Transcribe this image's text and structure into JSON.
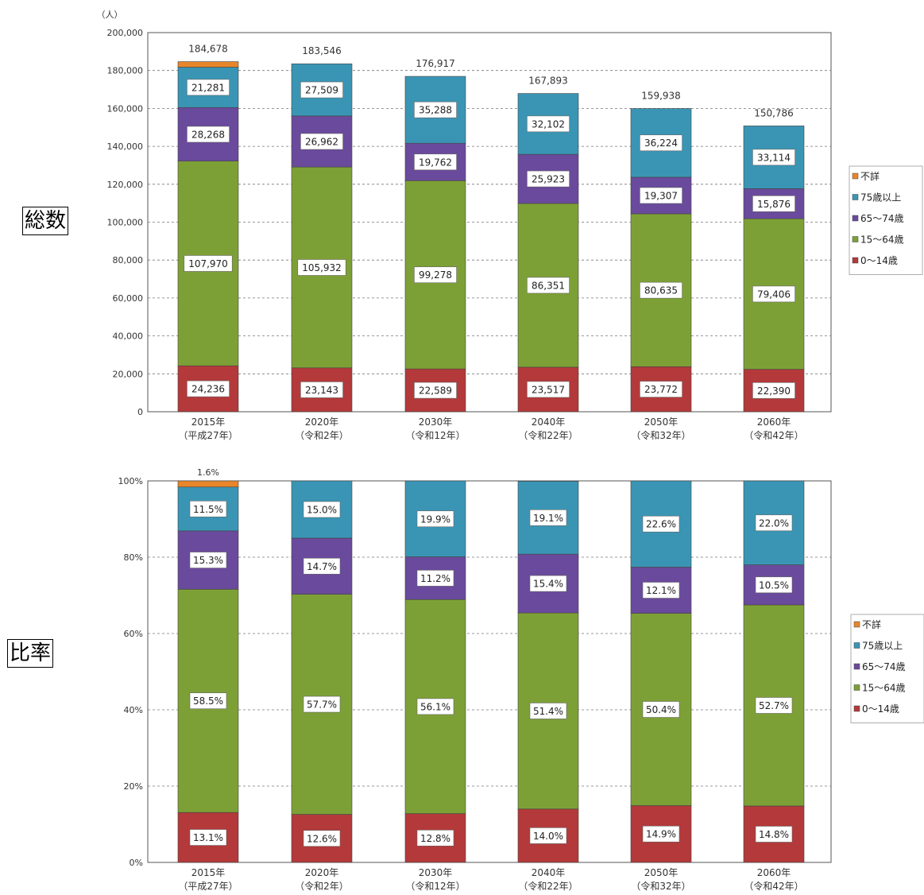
{
  "colors": {
    "unknown": "#E8862A",
    "age75plus": "#3A95B4",
    "age65_74": "#6A4A9C",
    "age15_64": "#7DA036",
    "age0_14": "#B4393A"
  },
  "legend": [
    "不詳",
    "75歳以上",
    "65～74歳",
    "15～64歳",
    "0～14歳"
  ],
  "panel_labels": {
    "top": "総数",
    "bottom": "比率"
  },
  "chart_data": [
    {
      "type": "bar",
      "stacked": true,
      "unit_label": "（人）",
      "categories": [
        "2015年",
        "2020年",
        "2030年",
        "2040年",
        "2050年",
        "2060年"
      ],
      "category_sub": [
        "（平成27年）",
        "（令和2年）",
        "（令和12年）",
        "（令和22年）",
        "（令和32年）",
        "（令和42年）"
      ],
      "ylim": [
        0,
        200000
      ],
      "yticks": [
        "0",
        "20,000",
        "40,000",
        "60,000",
        "80,000",
        "100,000",
        "120,000",
        "140,000",
        "160,000",
        "180,000",
        "200,000"
      ],
      "totals": [
        184678,
        183546,
        176917,
        167893,
        159938,
        150786
      ],
      "total_labels": [
        "184,678",
        "183,546",
        "176,917",
        "167,893",
        "159,938",
        "150,786"
      ],
      "series": [
        {
          "name": "0～14歳",
          "values": [
            24236,
            23143,
            22589,
            23517,
            23772,
            22390
          ],
          "labels": [
            "24,236",
            "23,143",
            "22,589",
            "23,517",
            "23,772",
            "22,390"
          ]
        },
        {
          "name": "15～64歳",
          "values": [
            107970,
            105932,
            99278,
            86351,
            80635,
            79406
          ],
          "labels": [
            "107,970",
            "105,932",
            "99,278",
            "86,351",
            "80,635",
            "79,406"
          ]
        },
        {
          "name": "65～74歳",
          "values": [
            28268,
            26962,
            19762,
            25923,
            19307,
            15876
          ],
          "labels": [
            "28,268",
            "26,962",
            "19,762",
            "25,923",
            "19,307",
            "15,876"
          ]
        },
        {
          "name": "75歳以上",
          "values": [
            21281,
            27509,
            35288,
            32102,
            36224,
            33114
          ],
          "labels": [
            "21,281",
            "27,509",
            "35,288",
            "32,102",
            "36,224",
            "33,114"
          ]
        },
        {
          "name": "不詳",
          "values": [
            2923,
            0,
            0,
            0,
            0,
            0
          ],
          "labels": [
            "",
            "",
            "",
            "",
            "",
            ""
          ]
        }
      ]
    },
    {
      "type": "bar",
      "stacked": true,
      "categories": [
        "2015年",
        "2020年",
        "2030年",
        "2040年",
        "2050年",
        "2060年"
      ],
      "category_sub": [
        "（平成27年）",
        "（令和2年）",
        "（令和12年）",
        "（令和22年）",
        "（令和32年）",
        "（令和42年）"
      ],
      "ylim": [
        0,
        100
      ],
      "yticks": [
        "0%",
        "20%",
        "40%",
        "60%",
        "80%",
        "100%"
      ],
      "top_note": "1.6%",
      "series": [
        {
          "name": "0～14歳",
          "values": [
            13.1,
            12.6,
            12.8,
            14.0,
            14.9,
            14.8
          ],
          "labels": [
            "13.1%",
            "12.6%",
            "12.8%",
            "14.0%",
            "14.9%",
            "14.8%"
          ]
        },
        {
          "name": "15～64歳",
          "values": [
            58.5,
            57.7,
            56.1,
            51.4,
            50.4,
            52.7
          ],
          "labels": [
            "58.5%",
            "57.7%",
            "56.1%",
            "51.4%",
            "50.4%",
            "52.7%"
          ]
        },
        {
          "name": "65～74歳",
          "values": [
            15.3,
            14.7,
            11.2,
            15.4,
            12.1,
            10.5
          ],
          "labels": [
            "15.3%",
            "14.7%",
            "11.2%",
            "15.4%",
            "12.1%",
            "10.5%"
          ]
        },
        {
          "name": "75歳以上",
          "values": [
            11.5,
            15.0,
            19.9,
            19.1,
            22.6,
            22.0
          ],
          "labels": [
            "11.5%",
            "15.0%",
            "19.9%",
            "19.1%",
            "22.6%",
            "22.0%"
          ]
        },
        {
          "name": "不詳",
          "values": [
            1.6,
            0,
            0,
            0,
            0,
            0
          ],
          "labels": [
            "",
            "",
            "",
            "",
            "",
            ""
          ]
        }
      ]
    }
  ]
}
